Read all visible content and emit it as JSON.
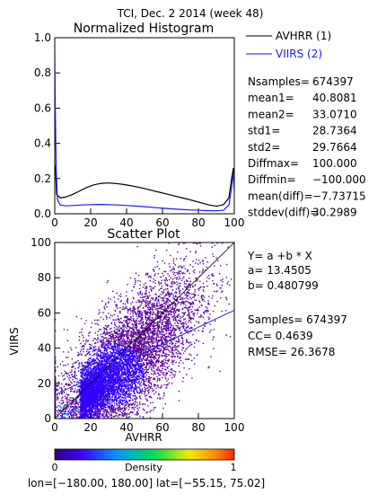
{
  "page_title": "TCI,  Dec. 2 2014 (week 48)",
  "colors": {
    "avhrr": "#000000",
    "viirs": "#1a1aff",
    "fit": "#2a2ad0",
    "axis": "#000000"
  },
  "chart_data": [
    {
      "type": "line",
      "title": "Normalized Histogram",
      "xlim": [
        0,
        100
      ],
      "ylim": [
        0,
        1.0
      ],
      "x_ticks": [
        "0",
        "20",
        "40",
        "60",
        "80",
        "100"
      ],
      "y_ticks": [
        "0.0",
        "0.2",
        "0.4",
        "0.6",
        "0.8",
        "1.0"
      ],
      "legend_position": "right",
      "series": [
        {
          "name": "AVHRR (1)",
          "color": "#000000",
          "points": [
            [
              0,
              0.28
            ],
            [
              0.5,
              0.25
            ],
            [
              1,
              0.11
            ],
            [
              3,
              0.09
            ],
            [
              6,
              0.095
            ],
            [
              10,
              0.11
            ],
            [
              14,
              0.13
            ],
            [
              18,
              0.15
            ],
            [
              22,
              0.165
            ],
            [
              26,
              0.173
            ],
            [
              30,
              0.175
            ],
            [
              34,
              0.172
            ],
            [
              38,
              0.167
            ],
            [
              42,
              0.16
            ],
            [
              46,
              0.152
            ],
            [
              50,
              0.143
            ],
            [
              54,
              0.133
            ],
            [
              58,
              0.123
            ],
            [
              62,
              0.113
            ],
            [
              66,
              0.103
            ],
            [
              70,
              0.093
            ],
            [
              74,
              0.083
            ],
            [
              78,
              0.072
            ],
            [
              82,
              0.061
            ],
            [
              86,
              0.05
            ],
            [
              90,
              0.043
            ],
            [
              94,
              0.052
            ],
            [
              97,
              0.09
            ],
            [
              98.5,
              0.2
            ],
            [
              99.5,
              0.26
            ],
            [
              100,
              0.17
            ]
          ]
        },
        {
          "name": "VIIRS (2)",
          "color": "#1a1aff",
          "points": [
            [
              0,
              0.95
            ],
            [
              0.3,
              0.6
            ],
            [
              0.8,
              0.25
            ],
            [
              1.5,
              0.08
            ],
            [
              3,
              0.05
            ],
            [
              6,
              0.045
            ],
            [
              10,
              0.047
            ],
            [
              15,
              0.05
            ],
            [
              20,
              0.052
            ],
            [
              25,
              0.053
            ],
            [
              30,
              0.052
            ],
            [
              35,
              0.05
            ],
            [
              40,
              0.047
            ],
            [
              45,
              0.044
            ],
            [
              50,
              0.04
            ],
            [
              55,
              0.036
            ],
            [
              60,
              0.032
            ],
            [
              65,
              0.028
            ],
            [
              70,
              0.025
            ],
            [
              75,
              0.022
            ],
            [
              80,
              0.02
            ],
            [
              85,
              0.018
            ],
            [
              90,
              0.017
            ],
            [
              94,
              0.02
            ],
            [
              97,
              0.05
            ],
            [
              98.5,
              0.15
            ],
            [
              99.5,
              0.23
            ],
            [
              100,
              0.12
            ]
          ]
        }
      ]
    },
    {
      "type": "scatter",
      "title": "Scatter Plot",
      "xlabel": "AVHRR",
      "ylabel": "VIIRS",
      "xlim": [
        0,
        100
      ],
      "ylim": [
        0,
        100
      ],
      "x_ticks": [
        "0",
        "20",
        "40",
        "60",
        "80",
        "100"
      ],
      "y_ticks": [
        "0",
        "20",
        "40",
        "60",
        "80",
        "100"
      ],
      "fit": {
        "a": 13.4505,
        "b": 0.480799
      },
      "diagonal": true,
      "density_colorbar": {
        "label": "Density",
        "min_label": "0",
        "max_label": "1"
      },
      "colors": [
        "#5a009a",
        "#3300ff",
        "#00aaff",
        "#00dd66",
        "#ffff00",
        "#ff4400"
      ]
    }
  ],
  "stats": [
    {
      "label": "Nsamples=",
      "value": "674397"
    },
    {
      "label": "mean1=",
      "value": "40.8081"
    },
    {
      "label": "mean2=",
      "value": "33.0710"
    },
    {
      "label": "std1=",
      "value": "28.7364"
    },
    {
      "label": "std2=",
      "value": "29.7664"
    },
    {
      "label": "Diffmax=",
      "value": "100.000"
    },
    {
      "label": "Diffmin=",
      "value": "−100.000"
    },
    {
      "label": "mean(diff)=",
      "value": "−7.73715"
    },
    {
      "label": "stddev(diff)=",
      "value": "30.2989"
    }
  ],
  "regression": {
    "equation": "Y= a +b * X",
    "a_text": "a= 13.4505",
    "b_text": "b= 0.480799",
    "samples_text": "Samples= 674397",
    "cc_text": "CC=  0.4639",
    "rmse_text": "RMSE= 26.3678"
  },
  "footer": "lon=[−180.00, 180.00] lat=[−55.15, 75.02]"
}
